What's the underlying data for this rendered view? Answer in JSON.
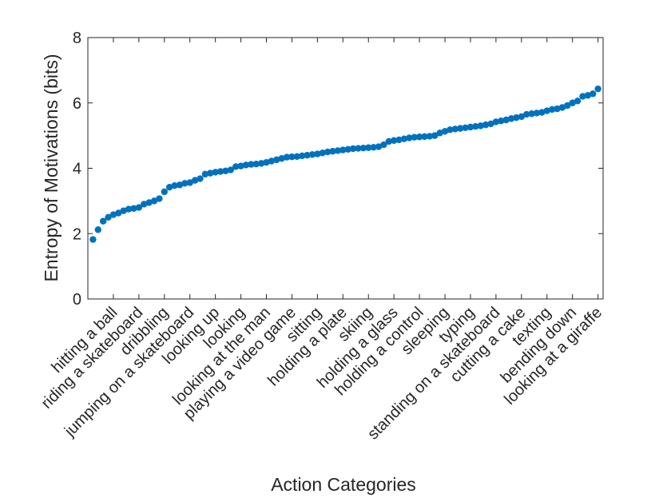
{
  "chart_data": {
    "type": "scatter",
    "xlabel": "Action Categories",
    "ylabel": "Entropy of Motivations (bits)",
    "ylim": [
      0,
      8
    ],
    "yticks": [
      0,
      2,
      4,
      6,
      8
    ],
    "n_points": 100,
    "marker_color": "#0072BD",
    "grid": false,
    "box": true,
    "xtick_labels": [
      "hitting a ball",
      "riding a skateboard",
      "dribbling",
      "jumping on a skateboard",
      "looking up",
      "looking",
      "looking at the man",
      "playing a video game",
      "sitting",
      "holding a plate",
      "skiing",
      "holding a glass",
      "holding a control",
      "sleeping",
      "typing",
      "standing on a skateboard",
      "cutting a cake",
      "texting",
      "bending down",
      "looking at a giraffe"
    ],
    "xtick_positions": [
      5,
      10,
      15,
      20,
      25,
      30,
      35,
      40,
      45,
      50,
      55,
      60,
      65,
      70,
      75,
      80,
      85,
      90,
      95,
      100
    ],
    "values": [
      1.82,
      2.12,
      2.38,
      2.5,
      2.58,
      2.63,
      2.7,
      2.75,
      2.77,
      2.8,
      2.9,
      2.95,
      3.0,
      3.07,
      3.28,
      3.42,
      3.47,
      3.49,
      3.54,
      3.56,
      3.63,
      3.68,
      3.82,
      3.85,
      3.88,
      3.9,
      3.92,
      3.95,
      4.05,
      4.07,
      4.1,
      4.12,
      4.13,
      4.15,
      4.18,
      4.22,
      4.26,
      4.3,
      4.34,
      4.35,
      4.36,
      4.38,
      4.4,
      4.42,
      4.44,
      4.47,
      4.5,
      4.52,
      4.54,
      4.56,
      4.58,
      4.6,
      4.61,
      4.62,
      4.63,
      4.64,
      4.66,
      4.72,
      4.82,
      4.85,
      4.87,
      4.9,
      4.93,
      4.95,
      4.96,
      4.97,
      4.98,
      5.0,
      5.08,
      5.13,
      5.18,
      5.2,
      5.22,
      5.24,
      5.26,
      5.28,
      5.3,
      5.33,
      5.36,
      5.42,
      5.45,
      5.48,
      5.52,
      5.55,
      5.58,
      5.65,
      5.67,
      5.69,
      5.71,
      5.76,
      5.8,
      5.82,
      5.86,
      5.92,
      6.0,
      6.06,
      6.2,
      6.23,
      6.28,
      6.43
    ]
  }
}
